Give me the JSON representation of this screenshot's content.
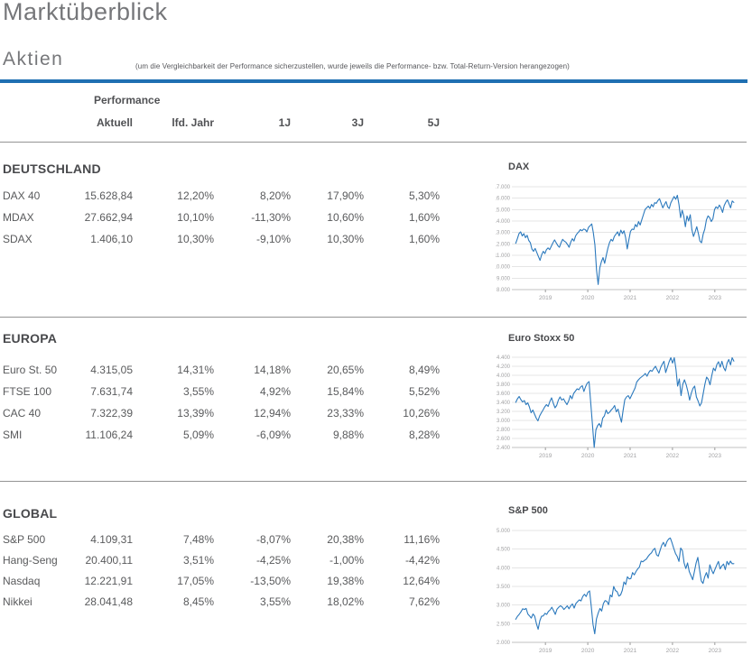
{
  "page": {
    "title": "Marktüberblick",
    "section_title": "Aktien",
    "section_note": "(um die Vergleichbarkeit der Performance sicherzustellen, wurde jeweils die Performance- bzw. Total-Return-Version herangezogen)"
  },
  "colors": {
    "accent_rule": "#1f6fb2",
    "chart_line": "#2b79bd",
    "grid_line": "#e5e5e5",
    "axis_line": "#c2c2c2",
    "tick_text": "#a2a2a4",
    "separator": "#949494"
  },
  "table": {
    "group_header": "Performance",
    "columns": [
      "Aktuell",
      "lfd. Jahr",
      "1J",
      "3J",
      "5J"
    ],
    "sections": [
      {
        "title": "DEUTSCHLAND",
        "rows": [
          {
            "name": "DAX 40",
            "values": [
              "15.628,84",
              "12,20%",
              "8,20%",
              "17,90%",
              "5,30%"
            ]
          },
          {
            "name": "MDAX",
            "values": [
              "27.662,94",
              "10,10%",
              "-11,30%",
              "10,60%",
              "1,60%"
            ]
          },
          {
            "name": "SDAX",
            "values": [
              "1.406,10",
              "10,30%",
              "-9,10%",
              "10,30%",
              "1,60%"
            ]
          }
        ]
      },
      {
        "title": "EUROPA",
        "rows": [
          {
            "name": "Euro St. 50",
            "values": [
              "4.315,05",
              "14,31%",
              "14,18%",
              "20,65%",
              "8,49%"
            ]
          },
          {
            "name": "FTSE 100",
            "values": [
              "7.631,74",
              "3,55%",
              "4,92%",
              "15,84%",
              "5,52%"
            ]
          },
          {
            "name": "CAC 40",
            "values": [
              "7.322,39",
              "13,39%",
              "12,94%",
              "23,33%",
              "10,26%"
            ]
          },
          {
            "name": "SMI",
            "values": [
              "11.106,24",
              "5,09%",
              "-6,09%",
              "9,88%",
              "8,28%"
            ]
          }
        ]
      },
      {
        "title": "GLOBAL",
        "rows": [
          {
            "name": "S&P 500",
            "values": [
              "4.109,31",
              "7,48%",
              "-8,07%",
              "20,38%",
              "11,16%"
            ]
          },
          {
            "name": "Hang-Seng",
            "values": [
              "20.400,11",
              "3,51%",
              "-4,25%",
              "-1,00%",
              "-4,42%"
            ]
          },
          {
            "name": "Nasdaq",
            "values": [
              "12.221,91",
              "17,05%",
              "-13,50%",
              "19,38%",
              "12,64%"
            ]
          },
          {
            "name": "Nikkei",
            "values": [
              "28.041,48",
              "8,45%",
              "3,55%",
              "18,02%",
              "7,62%"
            ]
          }
        ]
      }
    ]
  },
  "chart_data": [
    {
      "type": "line",
      "title": "DAX",
      "x_ticks": [
        "2019",
        "2020",
        "2021",
        "2022",
        "2023"
      ],
      "x_axis_range": [
        2018.25,
        2023.75
      ],
      "x_data_range": [
        2018.3,
        2023.45
      ],
      "ylim": [
        8000,
        17000
      ],
      "y_ticks": [
        17000,
        16000,
        15000,
        14000,
        13000,
        12000,
        11000,
        10000,
        9000,
        8000
      ],
      "y_tick_labels": [
        "17.000",
        "16.000",
        "15.000",
        "14.000",
        "13.000",
        "12.000",
        "11.000",
        "10.000",
        "9.000",
        "8.000"
      ],
      "values": [
        12050,
        12450,
        12900,
        13050,
        12700,
        12900,
        12550,
        12750,
        12300,
        12100,
        11550,
        11350,
        11600,
        11250,
        10900,
        10560,
        11050,
        11350,
        11150,
        11500,
        11650,
        11500,
        11800,
        12100,
        12350,
        12100,
        11850,
        11700,
        12100,
        12400,
        12250,
        12150,
        11950,
        11700,
        12150,
        12450,
        12250,
        12700,
        12900,
        13050,
        13250,
        13150,
        13300,
        13250,
        13050,
        13450,
        13600,
        13750,
        13000,
        11900,
        9700,
        8450,
        9900,
        10450,
        10800,
        10300,
        11000,
        11600,
        12100,
        12400,
        12250,
        12650,
        12850,
        13050,
        12700,
        13200,
        12900,
        13150,
        12550,
        11560,
        12350,
        13100,
        13300,
        13250,
        13700,
        13500,
        13950,
        13650,
        14100,
        14550,
        15000,
        15150,
        15300,
        15100,
        15450,
        15250,
        15600,
        15550,
        15800,
        15950,
        15550,
        15150,
        15450,
        15700,
        15250,
        15100,
        15600,
        15880,
        16150,
        15900,
        16250,
        15450,
        14300,
        14950,
        14400,
        13500,
        14450,
        14000,
        14550,
        13250,
        12650,
        13050,
        13500,
        12900,
        12250,
        12100,
        12850,
        13300,
        14100,
        14450,
        14300,
        13950,
        14200,
        15000,
        15250,
        15100,
        15400,
        15150,
        14750,
        15350,
        15650,
        15850,
        15500,
        15150,
        15750,
        15628
      ]
    },
    {
      "type": "line",
      "title": "Euro Stoxx 50",
      "x_ticks": [
        "2019",
        "2020",
        "2021",
        "2022",
        "2023"
      ],
      "x_axis_range": [
        2018.25,
        2023.75
      ],
      "x_data_range": [
        2018.3,
        2023.45
      ],
      "ylim": [
        2400,
        4400
      ],
      "y_ticks": [
        4400,
        4200,
        4000,
        3800,
        3600,
        3400,
        3200,
        3000,
        2800,
        2600,
        2400
      ],
      "y_tick_labels": [
        "4.400",
        "4.200",
        "4.000",
        "3.800",
        "3.600",
        "3.400",
        "3.200",
        "3.000",
        "2.800",
        "2.600",
        "2.400"
      ],
      "values": [
        3400,
        3480,
        3530,
        3460,
        3410,
        3440,
        3350,
        3390,
        3300,
        3170,
        3230,
        3140,
        3050,
        2990,
        3100,
        3170,
        3230,
        3300,
        3350,
        3310,
        3420,
        3500,
        3380,
        3280,
        3330,
        3450,
        3520,
        3450,
        3480,
        3410,
        3350,
        3430,
        3550,
        3480,
        3600,
        3650,
        3700,
        3680,
        3740,
        3770,
        3640,
        3750,
        3830,
        3860,
        3380,
        2900,
        2400,
        2790,
        2880,
        2930,
        2850,
        3050,
        3100,
        3230,
        3150,
        3180,
        3230,
        3270,
        3330,
        3190,
        3250,
        3100,
        2960,
        3220,
        3460,
        3520,
        3550,
        3480,
        3560,
        3640,
        3720,
        3850,
        3900,
        3940,
        3970,
        4000,
        4040,
        3980,
        4060,
        4110,
        4090,
        4150,
        4200,
        4120,
        4050,
        4170,
        4250,
        4310,
        4060,
        4180,
        4300,
        4390,
        4270,
        4390,
        4130,
        3760,
        3920,
        3550,
        3800,
        3900,
        3790,
        3640,
        3450,
        3600,
        3710,
        3760,
        3520,
        3430,
        3320,
        3390,
        3600,
        3800,
        3960,
        3910,
        3790,
        3990,
        4160,
        4100,
        4240,
        4300,
        4180,
        4310,
        4170,
        4100,
        4270,
        4350,
        4230,
        4390,
        4315
      ]
    },
    {
      "type": "line",
      "title": "S&P 500",
      "x_ticks": [
        "2019",
        "2020",
        "2021",
        "2022",
        "2023"
      ],
      "x_axis_range": [
        2018.25,
        2023.75
      ],
      "x_data_range": [
        2018.3,
        2023.45
      ],
      "ylim": [
        2000,
        5000
      ],
      "y_ticks": [
        5000,
        4500,
        4000,
        3500,
        3000,
        2500,
        2000
      ],
      "y_tick_labels": [
        "5.000",
        "4.500",
        "4.000",
        "3.500",
        "3.000",
        "2.500",
        "2.000"
      ],
      "values": [
        2620,
        2700,
        2750,
        2820,
        2900,
        2880,
        2910,
        2760,
        2710,
        2650,
        2760,
        2700,
        2500,
        2350,
        2580,
        2700,
        2710,
        2780,
        2750,
        2830,
        2870,
        2940,
        2850,
        2750,
        2890,
        2940,
        2980,
        2950,
        2880,
        2930,
        2980,
        2900,
        2980,
        3030,
        2920,
        3040,
        3090,
        3140,
        3110,
        3230,
        3290,
        3230,
        3340,
        3380,
        2950,
        2480,
        2230,
        2630,
        2790,
        2910,
        2840,
        3040,
        3120,
        3100,
        3010,
        3270,
        3220,
        3500,
        3390,
        3360,
        3240,
        3270,
        3390,
        3620,
        3550,
        3760,
        3700,
        3710,
        3870,
        3810,
        3900,
        3970,
        4020,
        4180,
        4160,
        4200,
        4230,
        4300,
        4360,
        4400,
        4480,
        4520,
        4350,
        4310,
        4460,
        4600,
        4680,
        4570,
        4700,
        4770,
        4800,
        4670,
        4520,
        4380,
        4300,
        4170,
        4530,
        4460,
        4130,
        3980,
        4130,
        3900,
        3790,
        3680,
        3900,
        4130,
        4280,
        3950,
        3650,
        3580,
        3760,
        3870,
        3720,
        4080,
        3940,
        3840,
        3960,
        4070,
        4170,
        3970,
        4050,
        4100,
        3950,
        4170,
        4080,
        4180,
        4110,
        4109
      ]
    }
  ]
}
